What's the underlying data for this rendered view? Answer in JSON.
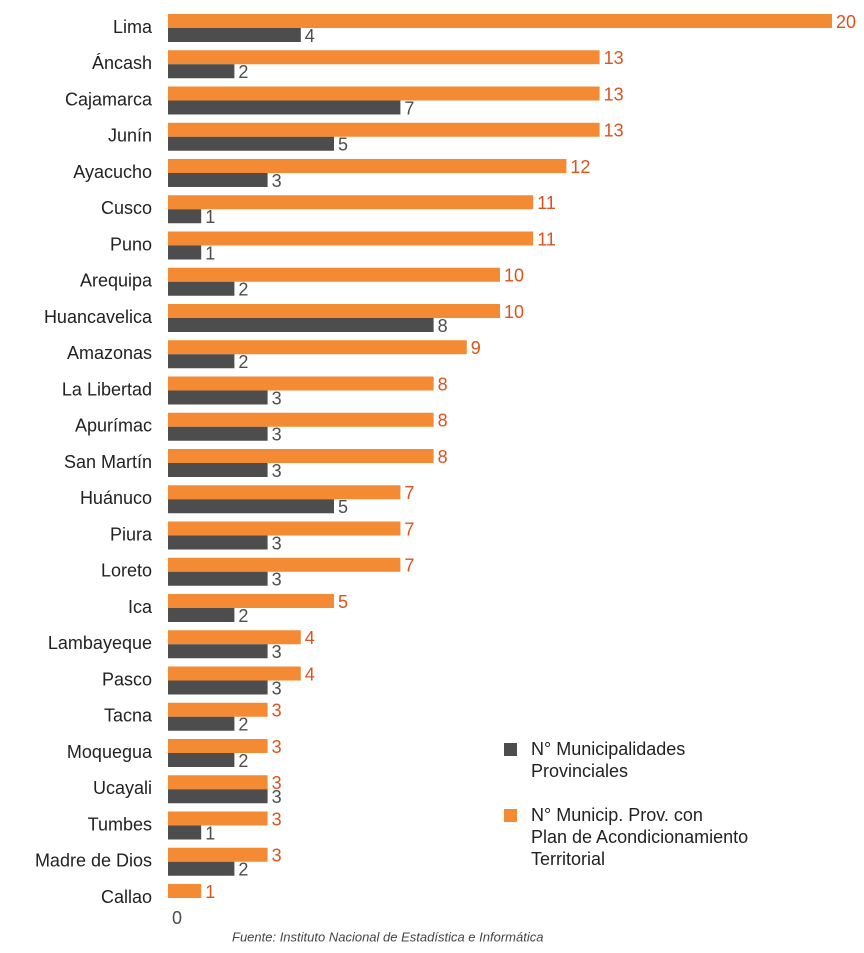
{
  "chart_data": {
    "type": "bar",
    "orientation": "horizontal",
    "categories": [
      "Lima",
      "Áncash",
      "Cajamarca",
      "Junín",
      "Ayacucho",
      "Cusco",
      "Puno",
      "Arequipa",
      "Huancavelica",
      "Amazonas",
      "La Libertad",
      "Apurímac",
      "San Martín",
      "Huánuco",
      "Piura",
      "Loreto",
      "Ica",
      "Lambayeque",
      "Pasco",
      "Tacna",
      "Moquegua",
      "Ucayali",
      "Tumbes",
      "Madre de Dios",
      "Callao"
    ],
    "series": [
      {
        "name": "N° Municipalidades\nProvinciales",
        "color": "#4d4d4d",
        "label_color": "#4d4d4d",
        "values": [
          4,
          2,
          7,
          5,
          3,
          1,
          1,
          2,
          8,
          2,
          3,
          3,
          3,
          5,
          3,
          3,
          2,
          3,
          3,
          2,
          2,
          3,
          1,
          2,
          0
        ]
      },
      {
        "name": "N° Municip. Prov. con\nPlan de Acondicionamiento\nTerritorial",
        "color": "#f58a34",
        "label_color": "#d9541e",
        "values": [
          20,
          13,
          13,
          13,
          12,
          11,
          11,
          10,
          10,
          9,
          8,
          8,
          8,
          7,
          7,
          7,
          5,
          4,
          4,
          3,
          3,
          3,
          3,
          3,
          1
        ]
      }
    ],
    "xlim": [
      0,
      20
    ],
    "source": "Fuente: Instituto Nacional de Estadística e Informática"
  }
}
